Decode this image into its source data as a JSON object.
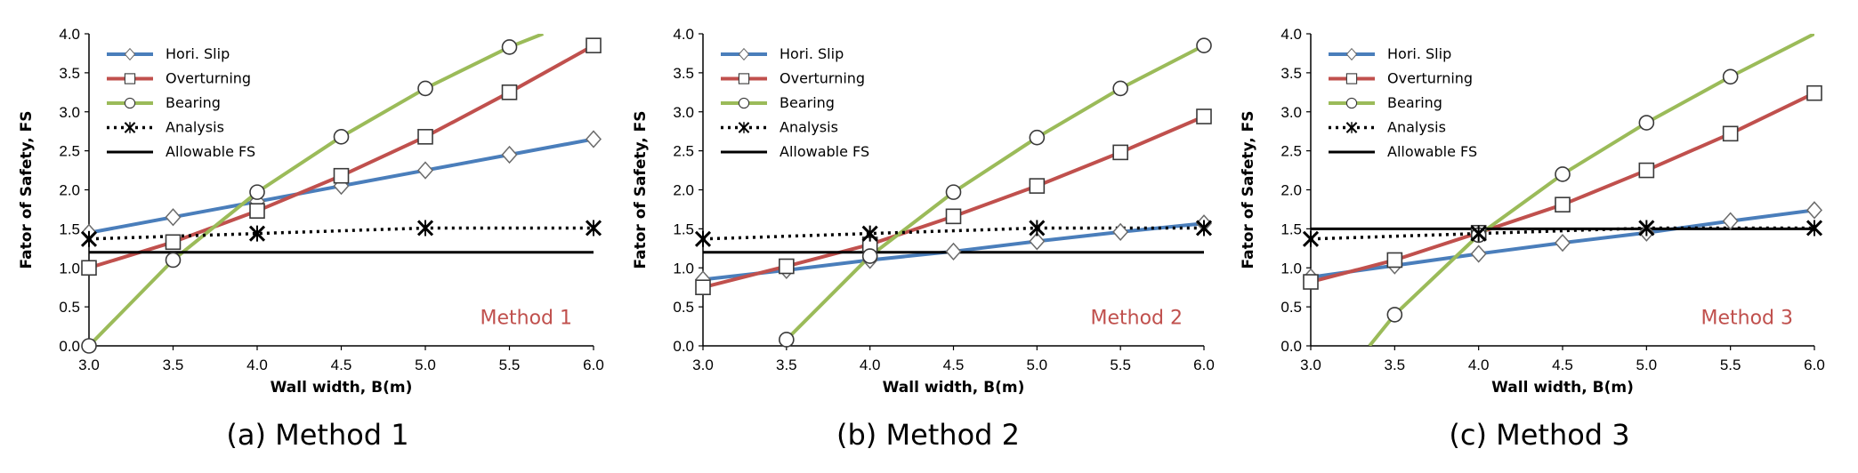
{
  "colors": {
    "hori_slip": "#4a7ebb",
    "overturning": "#c0504d",
    "bearing": "#9bbb59",
    "analysis": "#000000",
    "allowable": "#000000",
    "method_label": "#c0504d"
  },
  "chart_data": [
    {
      "type": "line",
      "method_label": "Method 1",
      "caption": "(a) Method 1",
      "xlabel": "Wall width, B(m)",
      "ylabel": "Fator of Safety, FS",
      "xlim": [
        3.0,
        6.0
      ],
      "ylim": [
        0.0,
        4.0
      ],
      "x_ticks": [
        "3.0",
        "3.5",
        "4.0",
        "4.5",
        "5.0",
        "5.5",
        "6.0"
      ],
      "y_ticks": [
        "0.0",
        "0.5",
        "1.0",
        "1.5",
        "2.0",
        "2.5",
        "3.0",
        "3.5",
        "4.0"
      ],
      "legend": [
        "Hori. Slip",
        "Overturning",
        "Bearing",
        "Analysis",
        "Allowable FS"
      ],
      "series": [
        {
          "name": "Hori. Slip",
          "x": [
            3.0,
            3.5,
            4.0,
            4.5,
            5.0,
            5.5,
            6.0
          ],
          "values": [
            1.45,
            1.65,
            1.85,
            2.05,
            2.25,
            2.45,
            2.65
          ]
        },
        {
          "name": "Overturning",
          "x": [
            3.0,
            3.5,
            4.0,
            4.5,
            5.0,
            5.5,
            6.0
          ],
          "values": [
            1.0,
            1.33,
            1.73,
            2.18,
            2.68,
            3.25,
            3.85
          ]
        },
        {
          "name": "Bearing",
          "x": [
            3.0,
            3.5,
            4.0,
            4.5,
            5.0,
            5.5,
            5.7
          ],
          "values": [
            0.0,
            1.1,
            1.97,
            2.68,
            3.3,
            3.83,
            4.0
          ],
          "marker_points": 6
        },
        {
          "name": "Analysis",
          "x": [
            3.0,
            4.0,
            5.0,
            6.0
          ],
          "values": [
            1.37,
            1.44,
            1.51,
            1.51
          ]
        },
        {
          "name": "Allowable FS",
          "x": [
            3.0,
            6.0
          ],
          "values": [
            1.2,
            1.2
          ]
        }
      ]
    },
    {
      "type": "line",
      "method_label": "Method 2",
      "caption": "(b) Method 2",
      "xlabel": "Wall width, B(m)",
      "ylabel": "Fator of Safety, FS",
      "xlim": [
        3.0,
        6.0
      ],
      "ylim": [
        0.0,
        4.0
      ],
      "x_ticks": [
        "3.0",
        "3.5",
        "4.0",
        "4.5",
        "5.0",
        "5.5",
        "6.0"
      ],
      "y_ticks": [
        "0.0",
        "0.5",
        "1.0",
        "1.5",
        "2.0",
        "2.5",
        "3.0",
        "3.5",
        "4.0"
      ],
      "legend": [
        "Hori. Slip",
        "Overturning",
        "Bearing",
        "Analysis",
        "Allowable FS"
      ],
      "series": [
        {
          "name": "Hori. Slip",
          "x": [
            3.0,
            3.5,
            4.0,
            4.5,
            5.0,
            5.5,
            6.0
          ],
          "values": [
            0.85,
            0.97,
            1.1,
            1.21,
            1.34,
            1.46,
            1.57
          ]
        },
        {
          "name": "Overturning",
          "x": [
            3.0,
            3.5,
            4.0,
            4.5,
            5.0,
            5.5,
            6.0
          ],
          "values": [
            0.75,
            1.02,
            1.3,
            1.66,
            2.05,
            2.48,
            2.94
          ]
        },
        {
          "name": "Bearing",
          "x": [
            3.5,
            4.0,
            4.5,
            5.0,
            5.5,
            6.0
          ],
          "values": [
            0.08,
            1.15,
            1.97,
            2.67,
            3.3,
            3.85
          ]
        },
        {
          "name": "Analysis",
          "x": [
            3.0,
            4.0,
            5.0,
            6.0
          ],
          "values": [
            1.37,
            1.44,
            1.51,
            1.51
          ]
        },
        {
          "name": "Allowable FS",
          "x": [
            3.0,
            6.0
          ],
          "values": [
            1.2,
            1.2
          ]
        }
      ]
    },
    {
      "type": "line",
      "method_label": "Method 3",
      "caption": "(c) Method 3",
      "xlabel": "Wall width, B(m)",
      "ylabel": "Fator of Safety, FS",
      "xlim": [
        3.0,
        6.0
      ],
      "ylim": [
        0.0,
        4.0
      ],
      "x_ticks": [
        "3.0",
        "3.5",
        "4.0",
        "4.5",
        "5.0",
        "5.5",
        "6.0"
      ],
      "y_ticks": [
        "0.0",
        "0.5",
        "1.0",
        "1.5",
        "2.0",
        "2.5",
        "3.0",
        "3.5",
        "4.0"
      ],
      "legend": [
        "Hori. Slip",
        "Overturning",
        "Bearing",
        "Analysis",
        "Allowable FS"
      ],
      "series": [
        {
          "name": "Hori. Slip",
          "x": [
            3.0,
            3.5,
            4.0,
            4.5,
            5.0,
            5.5,
            6.0
          ],
          "values": [
            0.88,
            1.03,
            1.18,
            1.32,
            1.45,
            1.6,
            1.74
          ]
        },
        {
          "name": "Overturning",
          "x": [
            3.0,
            3.5,
            4.0,
            4.5,
            5.0,
            5.5,
            6.0
          ],
          "values": [
            0.82,
            1.1,
            1.45,
            1.81,
            2.25,
            2.72,
            3.24
          ]
        },
        {
          "name": "Bearing",
          "x": [
            3.35,
            3.5,
            4.0,
            4.5,
            5.0,
            5.5,
            6.0
          ],
          "values": [
            0.0,
            0.4,
            1.42,
            2.2,
            2.86,
            3.45,
            4.0
          ],
          "marker_start": 1,
          "marker_points": 6
        },
        {
          "name": "Analysis",
          "x": [
            3.0,
            4.0,
            5.0,
            6.0
          ],
          "values": [
            1.37,
            1.44,
            1.51,
            1.51
          ]
        },
        {
          "name": "Allowable FS",
          "x": [
            3.0,
            6.0
          ],
          "values": [
            1.5,
            1.5
          ]
        }
      ]
    }
  ]
}
